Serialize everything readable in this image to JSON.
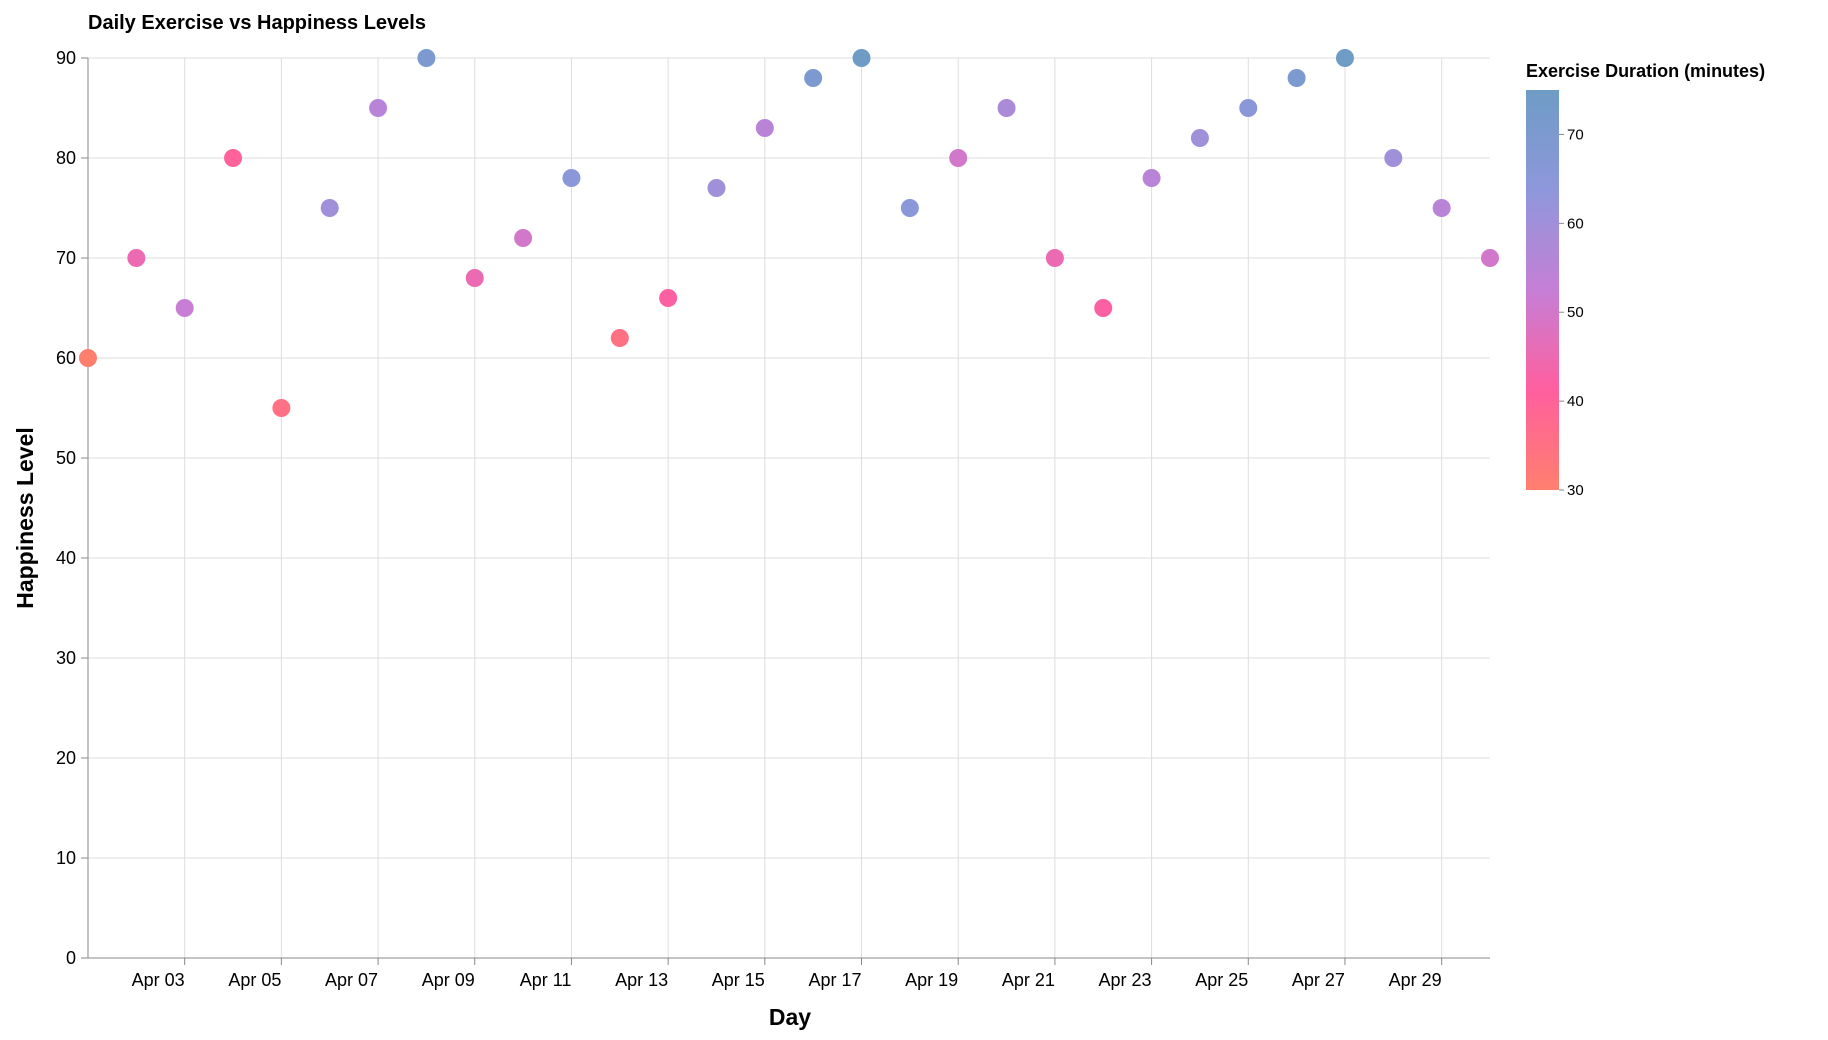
{
  "chart_data": {
    "type": "scatter",
    "title": "Daily Exercise vs Happiness Levels",
    "xlabel": "Day",
    "ylabel": "Happiness Level",
    "ylim": [
      0,
      90
    ],
    "xlim": [
      "2024-04-01",
      "2024-04-30"
    ],
    "y_ticks": [
      0,
      10,
      20,
      30,
      40,
      50,
      60,
      70,
      80,
      90
    ],
    "x_ticks": [
      "2024-04-03",
      "2024-04-05",
      "2024-04-07",
      "2024-04-09",
      "2024-04-11",
      "2024-04-13",
      "2024-04-15",
      "2024-04-17",
      "2024-04-19",
      "2024-04-21",
      "2024-04-23",
      "2024-04-25",
      "2024-04-27",
      "2024-04-29"
    ],
    "x_tick_labels": [
      "Apr 03",
      "Apr 05",
      "Apr 07",
      "Apr 09",
      "Apr 11",
      "Apr 13",
      "Apr 15",
      "Apr 17",
      "Apr 19",
      "Apr 21",
      "Apr 23",
      "Apr 25",
      "Apr 27",
      "Apr 29"
    ],
    "grid": true,
    "color_encoding": {
      "field": "Exercise Duration (minutes)",
      "domain": [
        30,
        75
      ],
      "range": [
        "#ff7f6e",
        "#ff5f9e",
        "#c57fd6",
        "#8e97db",
        "#6e9cc5"
      ],
      "legend_ticks": [
        30,
        40,
        50,
        60,
        70
      ],
      "legend_position": "right"
    },
    "points": [
      {
        "date": "2024-04-01",
        "happiness": 60,
        "exercise": 30
      },
      {
        "date": "2024-04-02",
        "happiness": 70,
        "exercise": 45
      },
      {
        "date": "2024-04-03",
        "happiness": 65,
        "exercise": 52
      },
      {
        "date": "2024-04-04",
        "happiness": 80,
        "exercise": 40
      },
      {
        "date": "2024-04-05",
        "happiness": 55,
        "exercise": 35
      },
      {
        "date": "2024-04-06",
        "happiness": 75,
        "exercise": 60
      },
      {
        "date": "2024-04-07",
        "happiness": 85,
        "exercise": 55
      },
      {
        "date": "2024-04-08",
        "happiness": 90,
        "exercise": 70
      },
      {
        "date": "2024-04-09",
        "happiness": 68,
        "exercise": 45
      },
      {
        "date": "2024-04-10",
        "happiness": 72,
        "exercise": 50
      },
      {
        "date": "2024-04-11",
        "happiness": 78,
        "exercise": 65
      },
      {
        "date": "2024-04-12",
        "happiness": 62,
        "exercise": 35
      },
      {
        "date": "2024-04-13",
        "happiness": 66,
        "exercise": 42
      },
      {
        "date": "2024-04-14",
        "happiness": 77,
        "exercise": 60
      },
      {
        "date": "2024-04-15",
        "happiness": 83,
        "exercise": 55
      },
      {
        "date": "2024-04-16",
        "happiness": 88,
        "exercise": 70
      },
      {
        "date": "2024-04-17",
        "happiness": 90,
        "exercise": 75
      },
      {
        "date": "2024-04-18",
        "happiness": 75,
        "exercise": 65
      },
      {
        "date": "2024-04-19",
        "happiness": 80,
        "exercise": 50
      },
      {
        "date": "2024-04-20",
        "happiness": 85,
        "exercise": 58
      },
      {
        "date": "2024-04-21",
        "happiness": 70,
        "exercise": 45
      },
      {
        "date": "2024-04-22",
        "happiness": 65,
        "exercise": 42
      },
      {
        "date": "2024-04-23",
        "happiness": 78,
        "exercise": 55
      },
      {
        "date": "2024-04-24",
        "happiness": 82,
        "exercise": 60
      },
      {
        "date": "2024-04-25",
        "happiness": 85,
        "exercise": 65
      },
      {
        "date": "2024-04-26",
        "happiness": 88,
        "exercise": 70
      },
      {
        "date": "2024-04-27",
        "happiness": 90,
        "exercise": 75
      },
      {
        "date": "2024-04-28",
        "happiness": 80,
        "exercise": 60
      },
      {
        "date": "2024-04-29",
        "happiness": 75,
        "exercise": 55
      },
      {
        "date": "2024-04-30",
        "happiness": 70,
        "exercise": 50
      }
    ]
  }
}
